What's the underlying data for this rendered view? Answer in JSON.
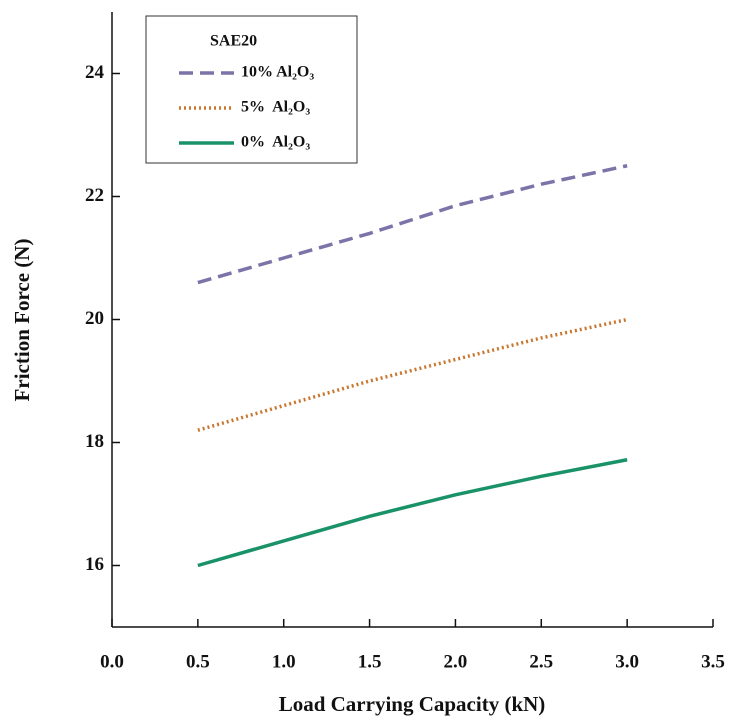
{
  "chart_data": {
    "type": "line",
    "xlabel": "Load Carrying Capacity (kN)",
    "ylabel": "Friction Force (N)",
    "legend_title": "SAE20",
    "legend": "upper left",
    "x": [
      0.5,
      1.0,
      1.5,
      2.0,
      2.5,
      3.0
    ],
    "series": [
      {
        "name": "10% Al₂O₃",
        "color": "#7b74a8",
        "dash": "dashed",
        "values": [
          20.6,
          21.0,
          21.4,
          21.85,
          22.2,
          22.5
        ]
      },
      {
        "name": "5%  Al₂O₃",
        "color": "#c9772f",
        "dash": "dotted",
        "values": [
          18.2,
          18.6,
          19.0,
          19.35,
          19.7,
          20.0
        ]
      },
      {
        "name": "0%  Al₂O₃",
        "color": "#1a9268",
        "dash": "solid",
        "values": [
          16.0,
          16.4,
          16.8,
          17.15,
          17.45,
          17.72
        ]
      }
    ],
    "xlim": [
      0,
      3.5
    ],
    "xticks": [
      {
        "value": 0,
        "label": "0.0"
      },
      0.5,
      {
        "value": 1,
        "label": "1.0"
      },
      1.5,
      {
        "value": 2,
        "label": "2.0"
      },
      2.5,
      {
        "value": 3,
        "label": "3.0"
      },
      3.5
    ],
    "ylim": [
      15,
      25
    ],
    "yticks": [
      16,
      18,
      20,
      22,
      24
    ]
  }
}
